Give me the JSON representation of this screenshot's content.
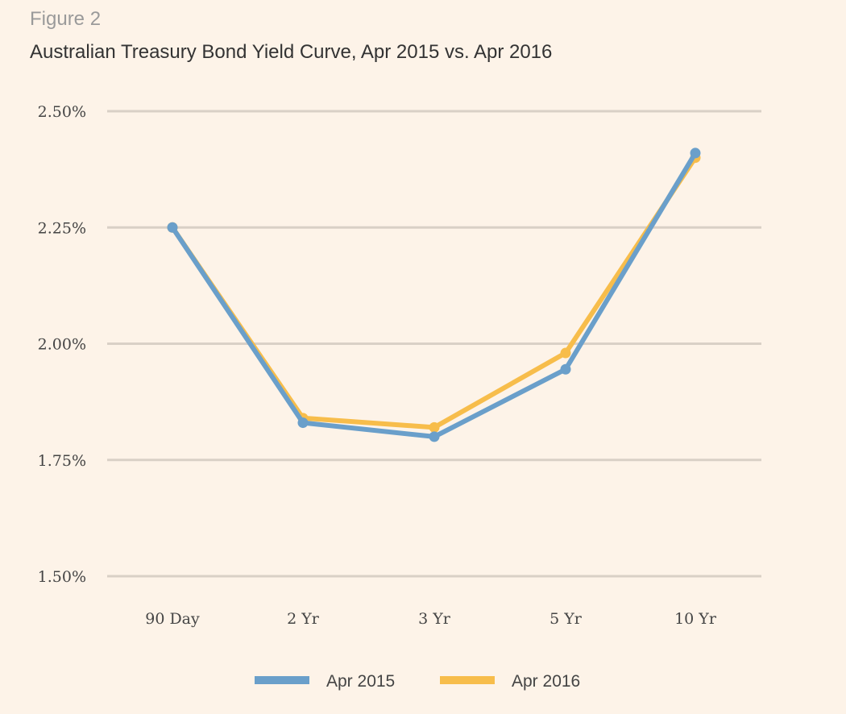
{
  "figure_label": "Figure 2",
  "chart_data": {
    "type": "line",
    "title": "Australian Treasury Bond Yield Curve, Apr 2015 vs. Apr 2016",
    "xlabel": "",
    "ylabel": "",
    "categories": [
      "90 Day",
      "2 Yr",
      "3 Yr",
      "5 Yr",
      "10 Yr"
    ],
    "ylim": [
      1.5,
      2.5
    ],
    "y_ticks": [
      1.5,
      1.75,
      2.0,
      2.25,
      2.5
    ],
    "y_tick_labels": [
      "1.50%",
      "1.75%",
      "2.00%",
      "2.25%",
      "2.50%"
    ],
    "grid": "horizontal",
    "legend_position": "bottom-center",
    "series": [
      {
        "name": "Apr 2015",
        "color": "#6a9fca",
        "values": [
          2.25,
          1.83,
          1.8,
          1.945,
          2.41
        ]
      },
      {
        "name": "Apr 2016",
        "color": "#f7bd4b",
        "values": [
          2.25,
          1.84,
          1.82,
          1.98,
          2.4
        ]
      }
    ]
  }
}
